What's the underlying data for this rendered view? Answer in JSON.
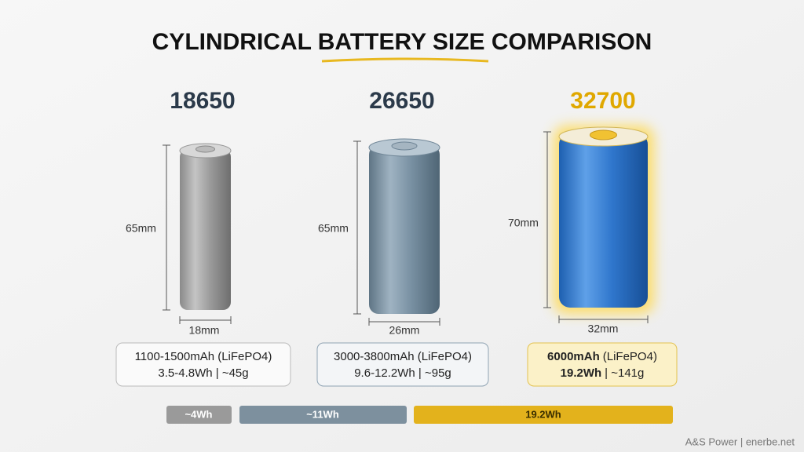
{
  "title": "CYLINDRICAL BATTERY SIZE COMPARISON",
  "batteries": [
    {
      "name": "18650",
      "height": "65mm",
      "diameter": "18mm",
      "spec": [
        "1100-1500mAh (LiFePO4)",
        "3.5-4.8Wh | ~45g"
      ]
    },
    {
      "name": "26650",
      "height": "65mm",
      "diameter": "26mm",
      "spec": [
        "3000-3800mAh (LiFePO4)",
        "9.6-12.2Wh | ~95g"
      ]
    },
    {
      "name": "32700",
      "height": "70mm",
      "diameter": "32mm",
      "spec": [
        [
          "6000mAh",
          "(LiFePO4)"
        ],
        [
          "19.2Wh",
          "| ~141g"
        ]
      ]
    }
  ],
  "energy_bars": [
    "~4Wh",
    "~11Wh",
    "19.2Wh"
  ],
  "footer": "A&S Power | enerbe.net"
}
